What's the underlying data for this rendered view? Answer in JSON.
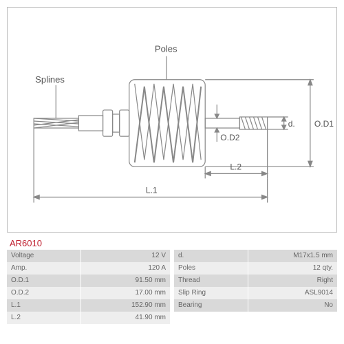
{
  "part_id": "AR6010",
  "diagram": {
    "labels": {
      "splines": "Splines",
      "poles": "Poles",
      "od1": "O.D1",
      "od2": "O.D2",
      "d": "d.",
      "l1": "L.1",
      "l2": "L.2"
    },
    "colors": {
      "stroke": "#888888",
      "text": "#555555"
    }
  },
  "specs_left": [
    {
      "key": "Voltage",
      "val": "12 V"
    },
    {
      "key": "Amp.",
      "val": "120 A"
    },
    {
      "key": "O.D.1",
      "val": "91.50 mm"
    },
    {
      "key": "O.D.2",
      "val": "17.00 mm"
    },
    {
      "key": "L.1",
      "val": "152.90 mm"
    },
    {
      "key": "L.2",
      "val": "41.90 mm"
    }
  ],
  "specs_right": [
    {
      "key": "d.",
      "val": "M17x1.5 mm"
    },
    {
      "key": "Poles",
      "val": "12 qty."
    },
    {
      "key": "Thread",
      "val": "Right"
    },
    {
      "key": "Slip Ring",
      "val": "ASL9014"
    },
    {
      "key": "Bearing",
      "val": "No"
    }
  ]
}
